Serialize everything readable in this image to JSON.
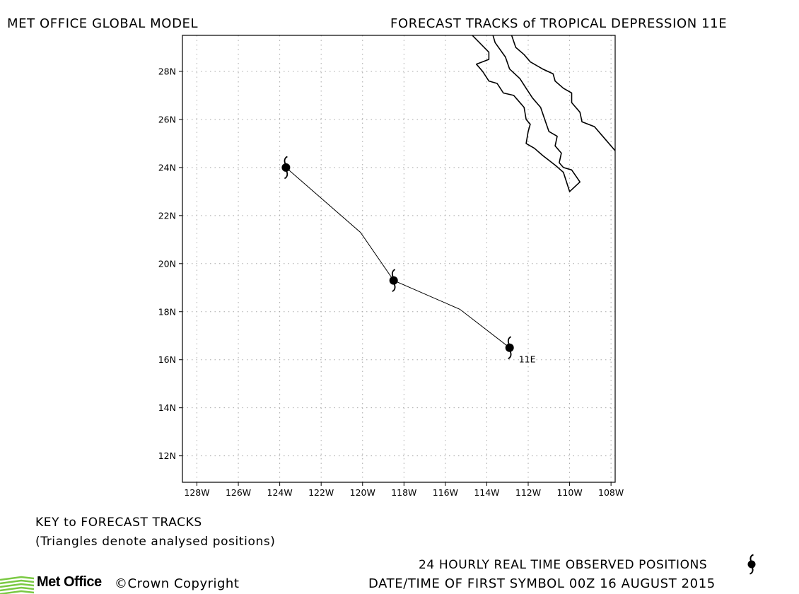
{
  "header": {
    "left_title": "MET OFFICE GLOBAL MODEL",
    "right_title": "FORECAST TRACKS of TROPICAL DEPRESSION 11E"
  },
  "map": {
    "lon_range": [
      -128.7,
      -107.8
    ],
    "lat_range": [
      10.9,
      29.5
    ],
    "grid": "dotted",
    "lat_ticks": [
      "12N",
      "14N",
      "16N",
      "18N",
      "20N",
      "22N",
      "24N",
      "26N",
      "28N"
    ],
    "lon_ticks": [
      "128W",
      "126W",
      "124W",
      "122W",
      "120W",
      "118W",
      "116W",
      "114W",
      "112W",
      "110W",
      "108W"
    ],
    "storm": {
      "label": "11E",
      "track": [
        {
          "lon": -112.9,
          "lat": 16.5
        },
        {
          "lon": -115.3,
          "lat": 18.1
        },
        {
          "lon": -118.5,
          "lat": 19.3
        },
        {
          "lon": -120.1,
          "lat": 21.3
        },
        {
          "lon": -123.7,
          "lat": 24.0
        }
      ],
      "daily_positions": [
        {
          "lon": -112.9,
          "lat": 16.5
        },
        {
          "lon": -118.5,
          "lat": 19.3
        },
        {
          "lon": -123.7,
          "lat": 24.0
        }
      ]
    },
    "coastlines": [
      [
        [
          -114.7,
          29.5
        ],
        [
          -113.9,
          28.8
        ],
        [
          -113.9,
          28.5
        ],
        [
          -114.5,
          28.3
        ],
        [
          -114.2,
          28.0
        ],
        [
          -113.9,
          27.6
        ],
        [
          -113.5,
          27.5
        ],
        [
          -113.2,
          27.1
        ],
        [
          -112.7,
          27.0
        ],
        [
          -112.5,
          26.8
        ],
        [
          -112.2,
          26.5
        ],
        [
          -112.1,
          26.0
        ],
        [
          -111.9,
          25.8
        ],
        [
          -112.0,
          25.5
        ],
        [
          -112.1,
          25.0
        ],
        [
          -111.7,
          24.8
        ],
        [
          -111.3,
          24.5
        ],
        [
          -110.7,
          24.1
        ],
        [
          -110.3,
          23.8
        ],
        [
          -110.0,
          23.0
        ],
        [
          -109.5,
          23.4
        ],
        [
          -109.9,
          23.9
        ],
        [
          -110.3,
          24.0
        ],
        [
          -110.5,
          24.2
        ],
        [
          -110.4,
          24.6
        ],
        [
          -110.7,
          24.9
        ],
        [
          -110.6,
          25.3
        ],
        [
          -111.0,
          25.5
        ],
        [
          -111.2,
          26.0
        ],
        [
          -111.4,
          26.5
        ],
        [
          -111.8,
          26.9
        ],
        [
          -112.1,
          27.3
        ],
        [
          -112.4,
          27.7
        ],
        [
          -112.9,
          28.1
        ],
        [
          -113.1,
          28.6
        ],
        [
          -113.6,
          29.2
        ],
        [
          -113.7,
          29.5
        ]
      ],
      [
        [
          -112.8,
          29.5
        ],
        [
          -112.6,
          29.0
        ],
        [
          -112.2,
          28.7
        ],
        [
          -111.9,
          28.4
        ],
        [
          -111.3,
          28.1
        ],
        [
          -110.8,
          27.9
        ],
        [
          -110.7,
          27.6
        ],
        [
          -110.3,
          27.3
        ],
        [
          -109.9,
          27.1
        ],
        [
          -109.9,
          26.7
        ],
        [
          -109.5,
          26.3
        ],
        [
          -109.4,
          25.9
        ],
        [
          -108.8,
          25.7
        ],
        [
          -108.4,
          25.3
        ],
        [
          -107.8,
          24.7
        ]
      ]
    ]
  },
  "key": {
    "title": "KEY to FORECAST TRACKS",
    "note": "(Triangles denote analysed positions)",
    "observed_label": "24 HOURLY REAL TIME OBSERVED POSITIONS",
    "first_symbol_label": "DATE/TIME OF FIRST SYMBOL 00Z 16 AUGUST 2015"
  },
  "footer": {
    "logo_text": "Met Office",
    "copyright": "©Crown Copyright"
  },
  "colors": {
    "logo_green": "#7ac943",
    "ink": "#000000"
  }
}
